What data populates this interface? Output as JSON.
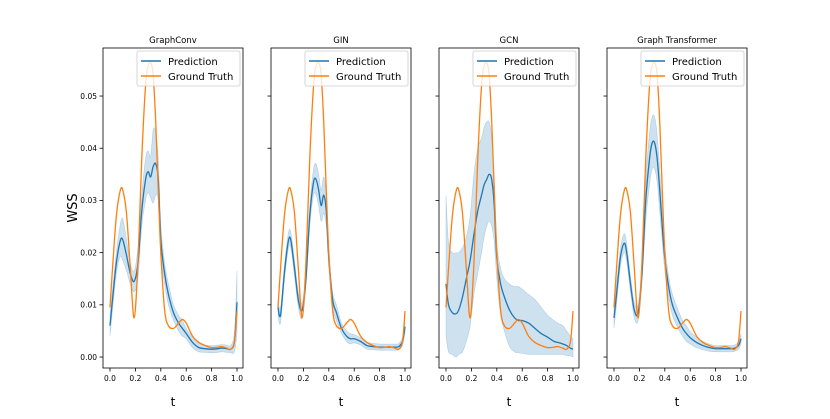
{
  "chart_data": {
    "type": "line",
    "ylabel": "WSS",
    "xlabel": "t",
    "xlim": [
      -0.055,
      1.047
    ],
    "ylim": [
      -0.0021,
      0.0592
    ],
    "xticks": [
      "0.0",
      "0.2",
      "0.4",
      "0.6",
      "0.8",
      "1.0"
    ],
    "yticks": [
      "0.00",
      "0.01",
      "0.02",
      "0.03",
      "0.04",
      "0.05"
    ],
    "legend": {
      "placement": "top-right",
      "entries": [
        "Prediction",
        "Ground Truth"
      ]
    },
    "colors": {
      "prediction": "#1f77b4",
      "ground_truth": "#ff7f0e",
      "band": "#1f77b4"
    },
    "t": [
      0,
      0.02,
      0.05,
      0.08,
      0.1,
      0.13,
      0.16,
      0.19,
      0.22,
      0.25,
      0.28,
      0.3,
      0.32,
      0.34,
      0.36,
      0.38,
      0.4,
      0.43,
      0.46,
      0.5,
      0.54,
      0.57,
      0.6,
      0.65,
      0.7,
      0.75,
      0.8,
      0.85,
      0.88,
      0.92,
      0.95,
      0.98,
      1.0
    ],
    "ground_truth": [
      0.0095,
      0.017,
      0.027,
      0.0318,
      0.032,
      0.0275,
      0.017,
      0.0075,
      0.018,
      0.038,
      0.052,
      0.0558,
      0.0565,
      0.054,
      0.045,
      0.032,
      0.02,
      0.009,
      0.006,
      0.0055,
      0.0065,
      0.0072,
      0.0065,
      0.004,
      0.0028,
      0.0022,
      0.0018,
      0.0019,
      0.002,
      0.0017,
      0.0015,
      0.003,
      0.0088
    ],
    "panels": [
      {
        "title": "GraphConv",
        "prediction": [
          0.006,
          0.011,
          0.018,
          0.0222,
          0.0225,
          0.0195,
          0.016,
          0.0145,
          0.018,
          0.028,
          0.034,
          0.0355,
          0.0345,
          0.0365,
          0.037,
          0.034,
          0.0225,
          0.016,
          0.012,
          0.0085,
          0.0065,
          0.0055,
          0.0045,
          0.0028,
          0.0018,
          0.0016,
          0.0015,
          0.0016,
          0.0017,
          0.0016,
          0.0015,
          0.003,
          0.0105
        ],
        "ci": [
          0.002,
          0.002,
          0.002,
          0.003,
          0.004,
          0.003,
          0.002,
          0.002,
          0.003,
          0.003,
          0.004,
          0.004,
          0.004,
          0.007,
          0.006,
          0.004,
          0.003,
          0.002,
          0.002,
          0.0015,
          0.0015,
          0.0015,
          0.001,
          0.001,
          0.0008,
          0.0007,
          0.0007,
          0.0007,
          0.0007,
          0.0007,
          0.0007,
          0.002,
          0.006
        ]
      },
      {
        "title": "GIN",
        "prediction": [
          0.0095,
          0.008,
          0.016,
          0.022,
          0.0225,
          0.017,
          0.011,
          0.009,
          0.015,
          0.027,
          0.0335,
          0.034,
          0.032,
          0.029,
          0.031,
          0.028,
          0.019,
          0.011,
          0.0085,
          0.0055,
          0.004,
          0.0035,
          0.0035,
          0.003,
          0.0022,
          0.002,
          0.0019,
          0.0019,
          0.0019,
          0.0019,
          0.002,
          0.003,
          0.0058
        ],
        "ci": [
          0.0015,
          0.0015,
          0.0015,
          0.0015,
          0.0015,
          0.0015,
          0.0015,
          0.0015,
          0.0015,
          0.002,
          0.0025,
          0.003,
          0.003,
          0.003,
          0.0035,
          0.003,
          0.002,
          0.0015,
          0.0015,
          0.001,
          0.001,
          0.001,
          0.0008,
          0.0007,
          0.0007,
          0.0006,
          0.0006,
          0.0006,
          0.0006,
          0.0006,
          0.0006,
          0.0008,
          0.001
        ]
      },
      {
        "title": "GCN",
        "prediction": [
          0.014,
          0.01,
          0.0085,
          0.0083,
          0.009,
          0.0115,
          0.015,
          0.0185,
          0.0235,
          0.028,
          0.031,
          0.033,
          0.034,
          0.035,
          0.034,
          0.029,
          0.019,
          0.014,
          0.0115,
          0.009,
          0.0075,
          0.007,
          0.007,
          0.0065,
          0.0055,
          0.0045,
          0.0038,
          0.003,
          0.0028,
          0.0025,
          0.0022,
          0.0017,
          0.0015
        ],
        "upper": [
          0.031,
          0.022,
          0.02,
          0.02,
          0.02,
          0.021,
          0.023,
          0.027,
          0.035,
          0.04,
          0.042,
          0.044,
          0.045,
          0.045,
          0.042,
          0.034,
          0.022,
          0.017,
          0.015,
          0.014,
          0.0135,
          0.0135,
          0.013,
          0.012,
          0.011,
          0.0095,
          0.008,
          0.007,
          0.0065,
          0.006,
          0.005,
          0.004,
          0.0035
        ],
        "lower": [
          0.004,
          0.001,
          0.0005,
          0.0,
          0.0005,
          0.001,
          0.003,
          0.006,
          0.012,
          0.016,
          0.02,
          0.023,
          0.025,
          0.026,
          0.025,
          0.022,
          0.015,
          0.008,
          0.005,
          0.002,
          0.001,
          0.0008,
          0.0007,
          0.0005,
          0.0005,
          0.0005,
          0.0005,
          0.0005,
          0.0005,
          0.0005,
          0.0003,
          0.0002,
          0.0
        ]
      },
      {
        "title": "Graph Transformer",
        "prediction": [
          0.0075,
          0.012,
          0.019,
          0.0218,
          0.02,
          0.014,
          0.009,
          0.0085,
          0.016,
          0.03,
          0.038,
          0.041,
          0.041,
          0.038,
          0.032,
          0.025,
          0.019,
          0.0135,
          0.01,
          0.0075,
          0.0055,
          0.0045,
          0.0037,
          0.0028,
          0.0022,
          0.0018,
          0.0016,
          0.0016,
          0.0016,
          0.0016,
          0.0017,
          0.0022,
          0.0035
        ],
        "ci": [
          0.002,
          0.002,
          0.0018,
          0.0018,
          0.0018,
          0.0015,
          0.0015,
          0.0015,
          0.002,
          0.004,
          0.005,
          0.005,
          0.005,
          0.0045,
          0.004,
          0.003,
          0.0025,
          0.002,
          0.002,
          0.0018,
          0.0015,
          0.0015,
          0.0012,
          0.001,
          0.0008,
          0.0007,
          0.0006,
          0.0006,
          0.0006,
          0.0006,
          0.0006,
          0.0007,
          0.001
        ]
      }
    ]
  }
}
